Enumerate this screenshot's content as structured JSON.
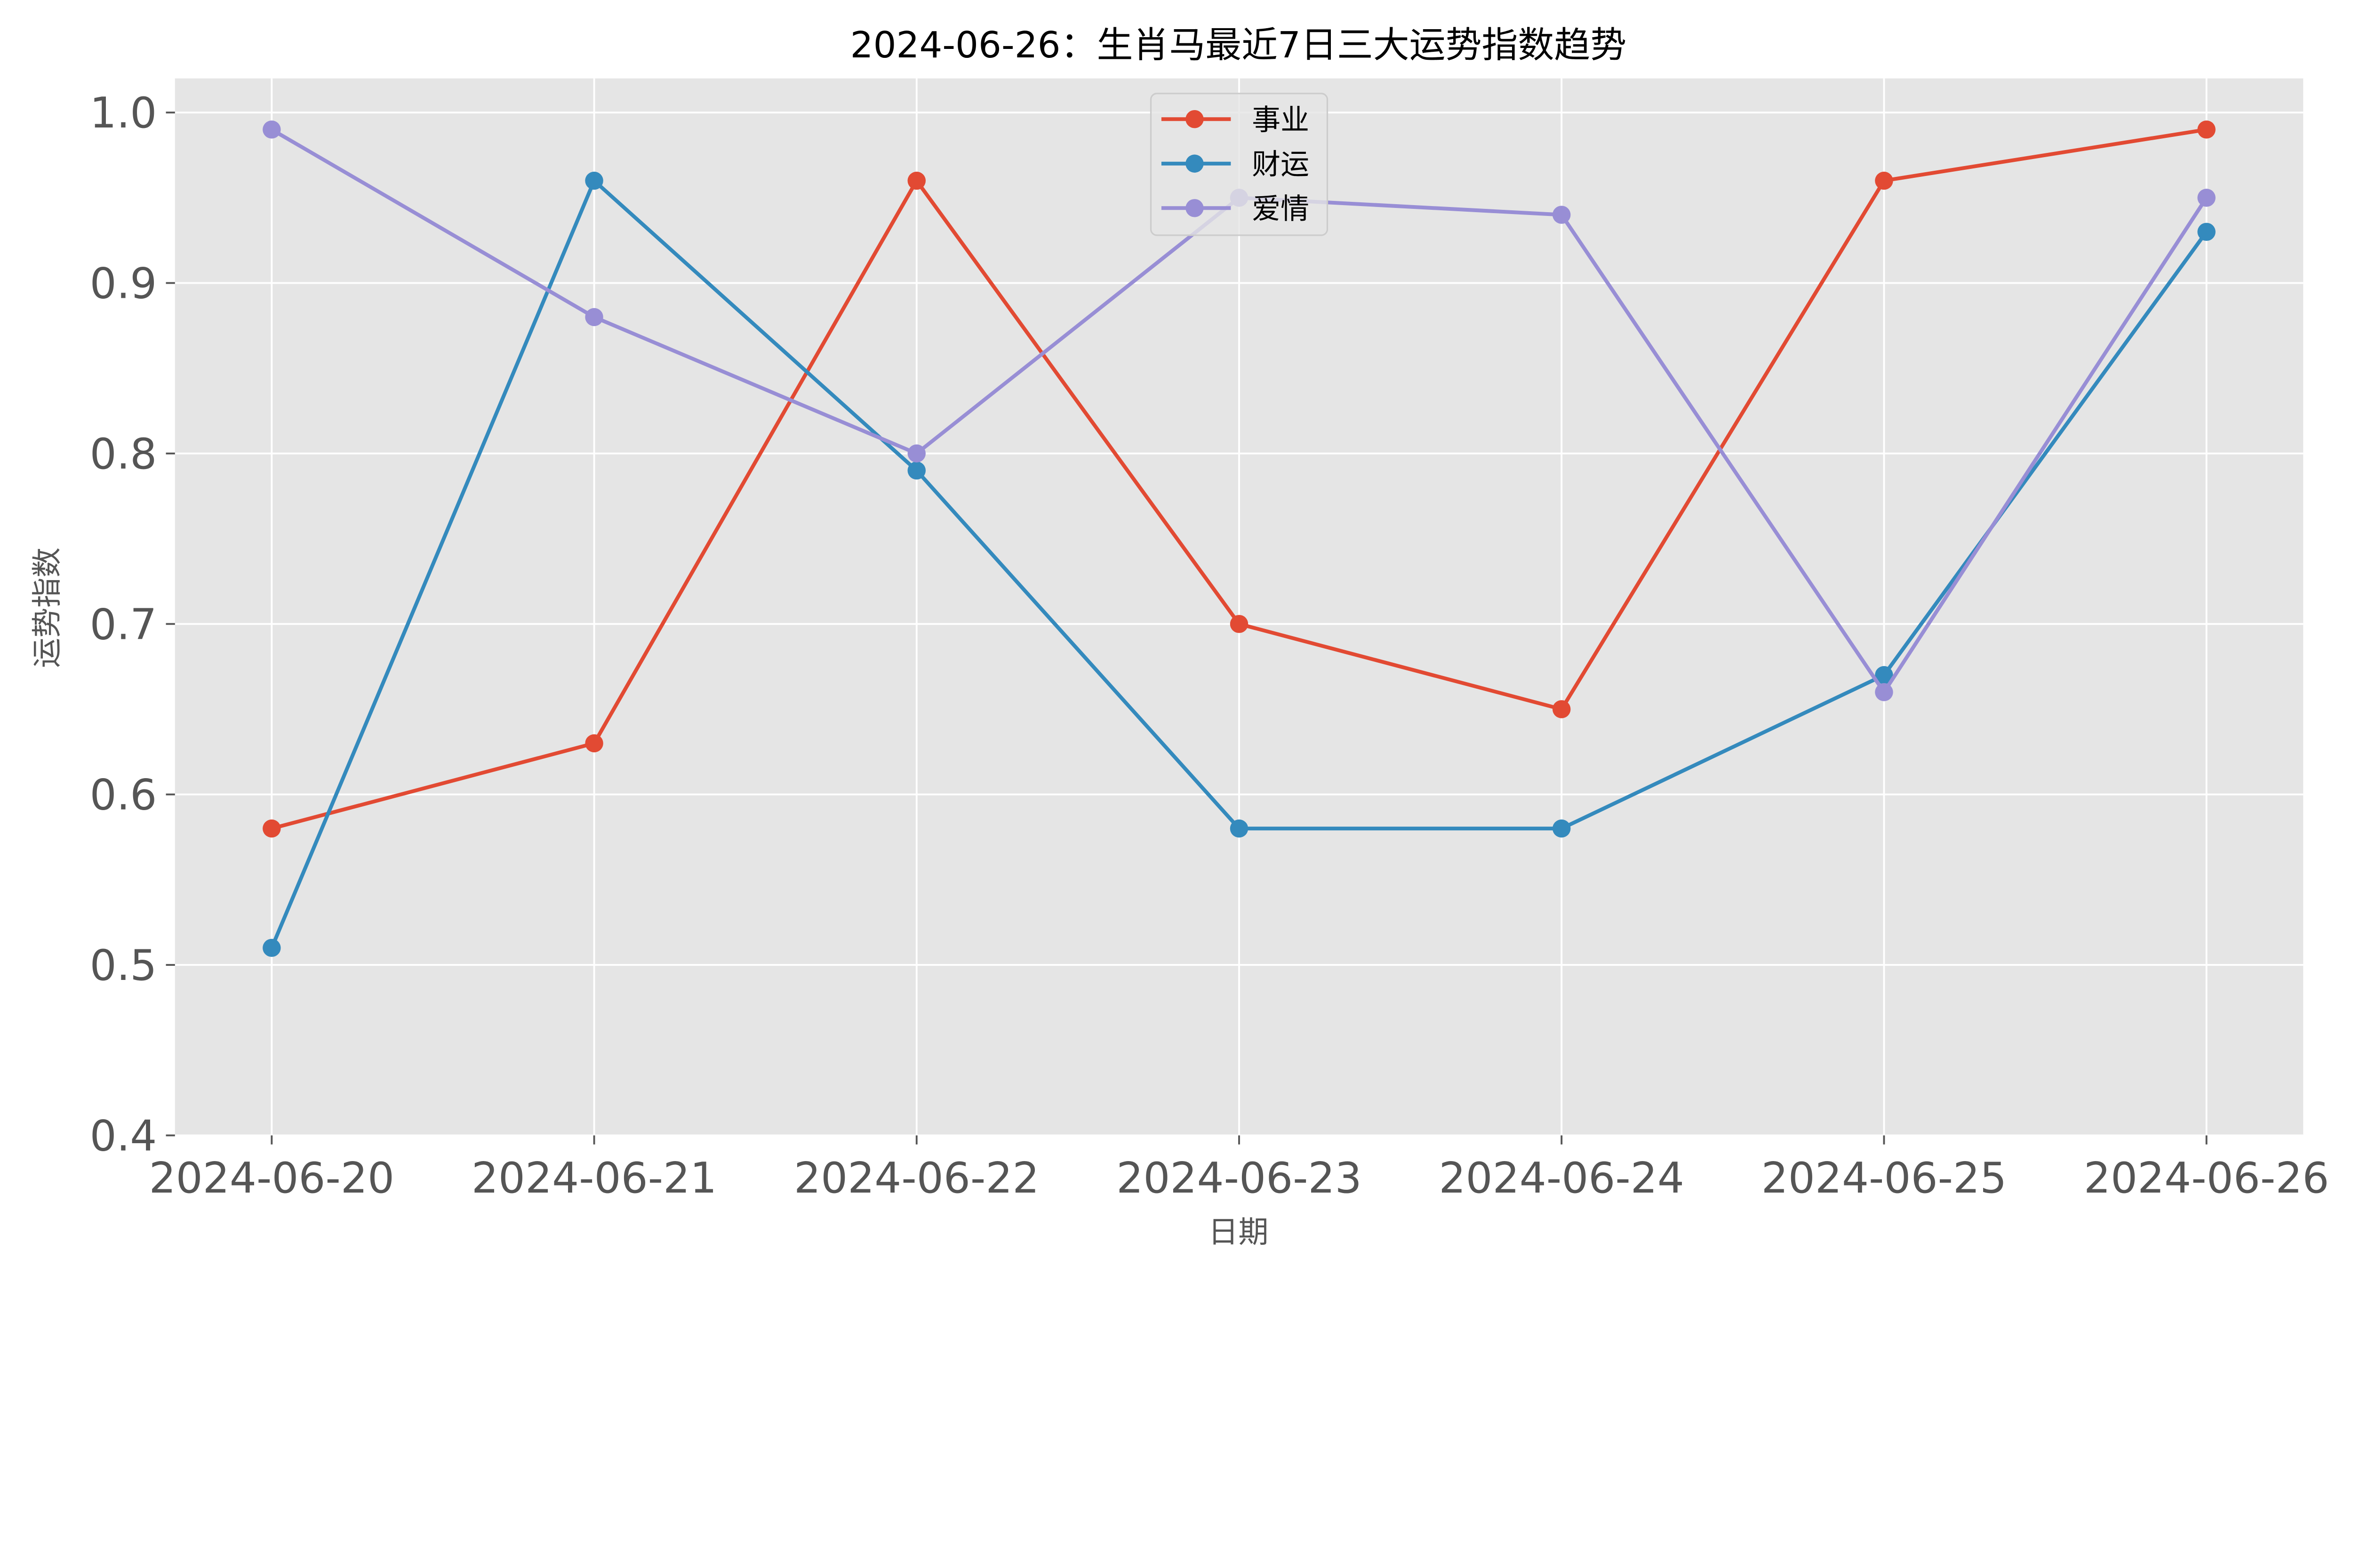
{
  "chart_data": {
    "type": "line",
    "title": "2024-06-26：生肖马最近7日三大运势指数趋势",
    "xlabel": "日期",
    "ylabel": "运势指数",
    "categories": [
      "2024-06-20",
      "2024-06-21",
      "2024-06-22",
      "2024-06-23",
      "2024-06-24",
      "2024-06-25",
      "2024-06-26"
    ],
    "ylim": [
      0.4,
      1.02
    ],
    "yticks": [
      "0.4",
      "0.5",
      "0.6",
      "0.7",
      "0.8",
      "0.9",
      "1.0"
    ],
    "grid": true,
    "legend_placement": "upper-center",
    "background": "#e5e5e5",
    "series": [
      {
        "name": "事业",
        "color": "#e24a33",
        "values": [
          0.58,
          0.63,
          0.96,
          0.7,
          0.65,
          0.96,
          0.99
        ]
      },
      {
        "name": "财运",
        "color": "#348abd",
        "values": [
          0.51,
          0.96,
          0.79,
          0.58,
          0.58,
          0.67,
          0.93
        ]
      },
      {
        "name": "爱情",
        "color": "#988ed5",
        "values": [
          0.99,
          0.88,
          0.8,
          0.95,
          0.94,
          0.66,
          0.95
        ]
      }
    ]
  }
}
